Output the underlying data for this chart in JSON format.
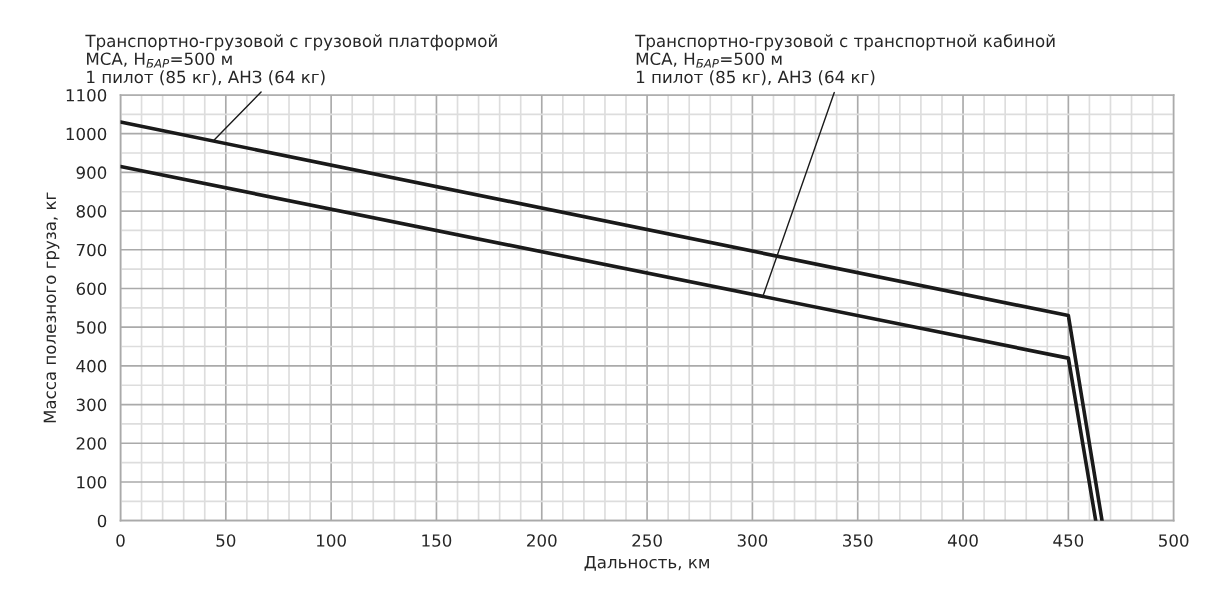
{
  "chart_data": {
    "type": "line",
    "xlabel": "Дальность, км",
    "ylabel": "Масса полезного груза, кг",
    "series": [
      {
        "color": "#1a1a1a",
        "x": [
          0,
          450,
          466
        ],
        "values": [
          1030,
          530,
          0
        ]
      },
      {
        "color": "#1a1a1a",
        "x": [
          0,
          450,
          463
        ],
        "values": [
          915,
          420,
          0
        ]
      }
    ],
    "annotations": [
      {
        "text": "Транспортно-грузовой с грузовой платформой\nМСА, H$_{БАР}$=500 м\n1 пилот (85 кг), АНЗ (64 кг)",
        "x": 44,
        "y": 981
      },
      {
        "text": "Транспортно-грузовой с транспортной кабиной\nМСА, H$_{БАР}$=500 м\n1 пилот (85 кг), АНЗ (64 кг)",
        "x": 305,
        "y": 580
      }
    ],
    "xlim": [
      0,
      500
    ],
    "xticks": [
      0,
      50,
      100,
      150,
      200,
      250,
      300,
      350,
      400,
      450,
      500
    ],
    "ylim": [
      0,
      1100
    ],
    "yticks": [
      0,
      100,
      200,
      300,
      400,
      500,
      600,
      700,
      800,
      900,
      1000,
      1100
    ],
    "grid": true,
    "legend": false,
    "marker": "none",
    "line_style": "solid"
  }
}
